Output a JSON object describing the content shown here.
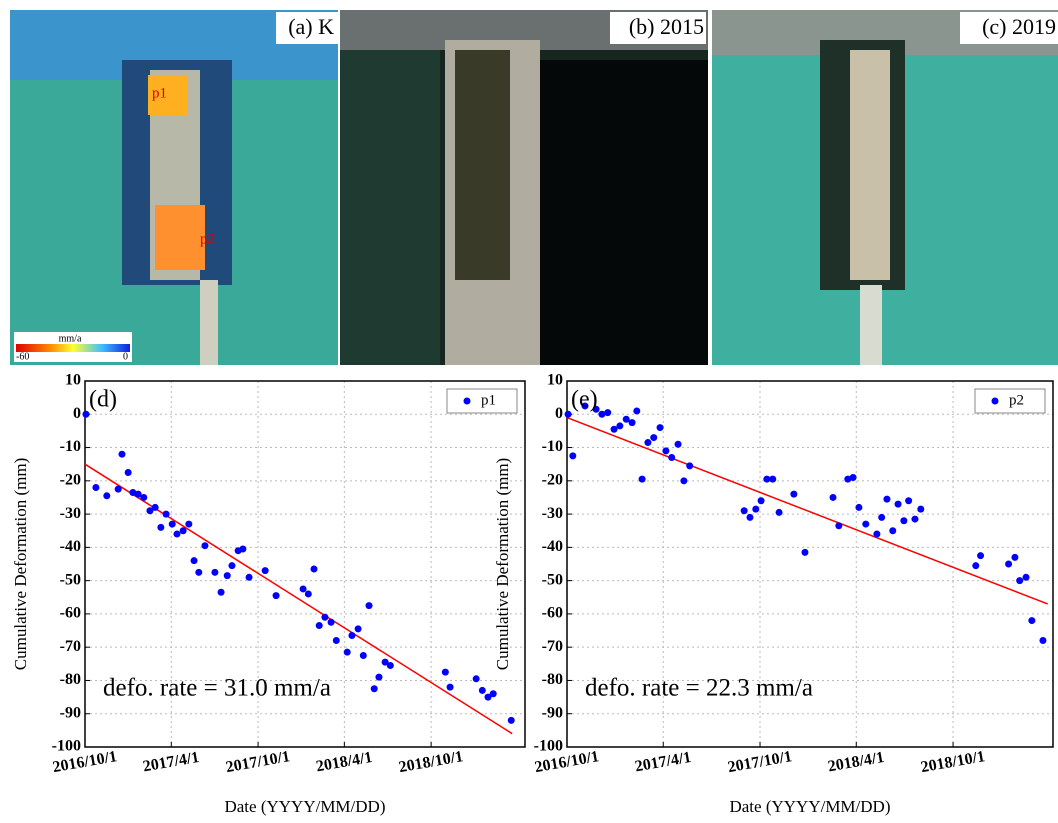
{
  "panels": [
    {
      "label": "(a) K"
    },
    {
      "label": "(b) 2015"
    },
    {
      "label": "(c) 2019"
    }
  ],
  "markers": [
    "p1",
    "p2"
  ],
  "colorbar": {
    "unit": "mm/a",
    "min": "-60",
    "max": "0"
  },
  "chart_data": [
    {
      "type": "scatter",
      "annotation": "(d)",
      "text": "defo. rate = 31.0 mm/a",
      "xlabel": "Date (YYYY/MM/DD)",
      "ylabel": "Cumulative Deformation (mm)",
      "xlim": [
        "2016/10/1",
        "2019/4/17"
      ],
      "xticks": [
        "2016/10/1",
        "2017/4/1",
        "2017/10/1",
        "2018/4/1",
        "2018/10/1"
      ],
      "ylim": [
        -100,
        10
      ],
      "yticks": [
        10,
        0,
        -10,
        -20,
        -30,
        -40,
        -50,
        -60,
        -70,
        -80,
        -90,
        -100
      ],
      "grid": true,
      "legend": "upper right",
      "x": [
        "2016/10/3",
        "2016/10/24",
        "2016/11/16",
        "2016/12/10",
        "2016/12/18",
        "2016/12/31",
        "2017/1/10",
        "2017/1/21",
        "2017/2/2",
        "2017/2/15",
        "2017/2/26",
        "2017/3/10",
        "2017/3/21",
        "2017/4/3",
        "2017/4/13",
        "2017/4/26",
        "2017/5/8",
        "2017/5/19",
        "2017/5/29",
        "2017/6/11",
        "2017/7/2",
        "2017/7/15",
        "2017/7/28",
        "2017/8/7",
        "2017/8/20",
        "2017/8/30",
        "2017/9/12",
        "2017/10/16",
        "2017/11/8",
        "2018/1/4",
        "2018/1/15",
        "2018/1/27",
        "2018/2/7",
        "2018/2/19",
        "2018/3/4",
        "2018/3/15",
        "2018/4/7",
        "2018/4/17",
        "2018/4/30",
        "2018/5/11",
        "2018/5/23",
        "2018/6/3",
        "2018/6/13",
        "2018/6/26",
        "2018/7/7",
        "2018/10/31",
        "2018/11/10",
        "2019/1/4",
        "2019/1/17",
        "2019/1/29",
        "2019/2/9",
        "2019/3/19"
      ],
      "series": [
        {
          "name": "p1",
          "color": "#0000ff",
          "values": [
            0,
            -22,
            -24.5,
            -22.5,
            -12,
            -17.5,
            -23.5,
            -24,
            -25,
            -29,
            -28,
            -34,
            -30,
            -33,
            -36,
            -35,
            -33,
            -44,
            -47.5,
            -39.5,
            -47.5,
            -53.5,
            -48.5,
            -45.5,
            -41,
            -40.5,
            -49,
            -47,
            -54.5,
            -52.5,
            -54,
            -46.5,
            -63.5,
            -61,
            -62.5,
            -68,
            -71.5,
            -66.5,
            -64.5,
            -72.5,
            -57.5,
            -82.5,
            -79,
            -74.5,
            -75.5,
            -77.5,
            -82,
            -79.5,
            -83,
            -85,
            -84,
            -92
          ]
        }
      ],
      "trend": {
        "color": "#ff0000",
        "x": [
          "2016/10/1",
          "2019/3/21"
        ],
        "values": [
          -15,
          -96
        ]
      }
    },
    {
      "type": "scatter",
      "annotation": "(e)",
      "text": "defo. rate = 22.3 mm/a",
      "xlabel": "Date (YYYY/MM/DD)",
      "ylabel": "Cumulative Deformation (mm)",
      "xlim": [
        "2016/10/1",
        "2019/4/8"
      ],
      "xticks": [
        "2016/10/1",
        "2017/4/1",
        "2017/10/1",
        "2018/4/1",
        "2018/10/1"
      ],
      "ylim": [
        -100,
        10
      ],
      "yticks": [
        10,
        0,
        -10,
        -20,
        -30,
        -40,
        -50,
        -60,
        -70,
        -80,
        -90,
        -100
      ],
      "grid": true,
      "legend": "upper right",
      "x": [
        "2016/10/3",
        "2016/10/12",
        "2016/11/4",
        "2016/11/25",
        "2016/12/6",
        "2016/12/17",
        "2016/12/29",
        "2017/1/9",
        "2017/1/21",
        "2017/2/1",
        "2017/2/10",
        "2017/2/20",
        "2017/3/3",
        "2017/3/14",
        "2017/3/26",
        "2017/4/6",
        "2017/4/17",
        "2017/4/29",
        "2017/5/10",
        "2017/5/21",
        "2017/9/1",
        "2017/9/12",
        "2017/9/23",
        "2017/10/3",
        "2017/10/14",
        "2017/10/25",
        "2017/11/6",
        "2017/12/4",
        "2017/12/25",
        "2018/2/16",
        "2018/2/27",
        "2018/3/16",
        "2018/3/26",
        "2018/4/6",
        "2018/4/19",
        "2018/5/10",
        "2018/5/19",
        "2018/5/29",
        "2018/6/9",
        "2018/6/19",
        "2018/6/30",
        "2018/7/9",
        "2018/7/21",
        "2018/8/1",
        "2018/11/13",
        "2018/11/22",
        "2019/1/14",
        "2019/1/26",
        "2019/2/4",
        "2019/2/16",
        "2019/2/27",
        "2019/3/20"
      ],
      "series": [
        {
          "name": "p2",
          "color": "#0000ff",
          "values": [
            0,
            -12.5,
            2.5,
            1.5,
            0,
            0.5,
            -4.5,
            -3.5,
            -1.5,
            -2.5,
            1,
            -19.5,
            -8.5,
            -7,
            -4,
            -11,
            -13,
            -9,
            -20,
            -15.5,
            -29,
            -31,
            -28.5,
            -26,
            -19.5,
            -19.5,
            -29.5,
            -24,
            -41.5,
            -25,
            -33.5,
            -19.5,
            -19,
            -28,
            -33,
            -36,
            -31,
            -25.5,
            -35,
            -27,
            -32,
            -26,
            -31.5,
            -28.5,
            -45.5,
            -42.5,
            -45,
            -43,
            -50,
            -49,
            -62,
            -68
          ]
        }
      ],
      "trend": {
        "color": "#ff0000",
        "x": [
          "2016/10/1",
          "2019/3/29"
        ],
        "values": [
          -1,
          -57
        ]
      }
    }
  ]
}
